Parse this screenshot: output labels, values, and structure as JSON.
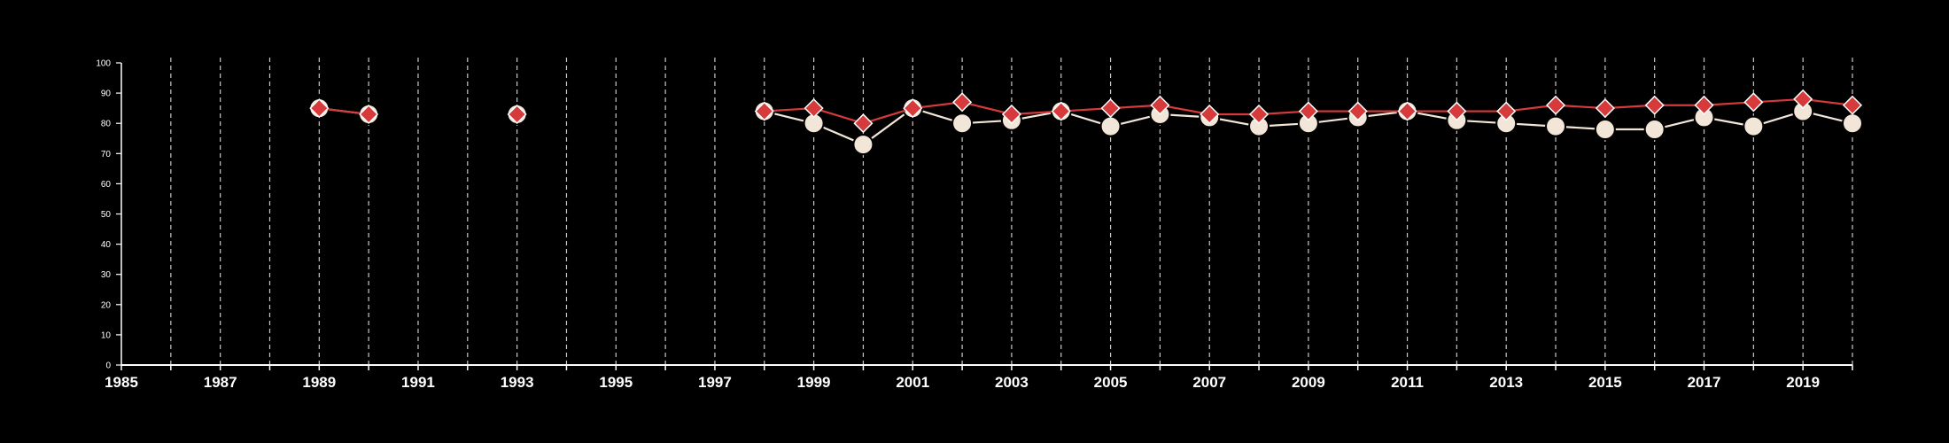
{
  "colors": {
    "background": "#000000",
    "axis": "#ffffff",
    "grid": "#c8c8c8",
    "series_a_line": "#f2e6d9",
    "series_a_marker": "#f2e6d9",
    "series_a_marker_stroke": "#000000",
    "series_b_line": "#d63a3a",
    "series_b_marker": "#d63a3a",
    "series_b_marker_stroke": "#ffffff"
  },
  "chart_data": {
    "type": "line",
    "title": "",
    "xlabel": "",
    "ylabel": "",
    "xlim": [
      1985,
      2020
    ],
    "ylim": [
      0,
      100
    ],
    "y_ticks": [
      0,
      10,
      20,
      30,
      40,
      50,
      60,
      70,
      80,
      90,
      100
    ],
    "x_tick_labels": [
      1985,
      1987,
      1989,
      1991,
      1993,
      1995,
      1997,
      1999,
      2001,
      2003,
      2005,
      2007,
      2009,
      2011,
      2013,
      2015,
      2017,
      2019
    ],
    "grid": "vertical dashed at every year",
    "legend": "none",
    "series": [
      {
        "marker": "circle",
        "segments": [
          [
            [
              1989,
              85
            ],
            [
              1990,
              83
            ]
          ],
          [
            [
              1993,
              83
            ]
          ],
          [
            [
              1998,
              84
            ],
            [
              1999,
              80
            ],
            [
              2000,
              73
            ],
            [
              2001,
              85
            ],
            [
              2002,
              80
            ],
            [
              2003,
              81
            ],
            [
              2004,
              84
            ],
            [
              2005,
              79
            ],
            [
              2006,
              83
            ],
            [
              2007,
              82
            ],
            [
              2008,
              79
            ],
            [
              2009,
              80
            ],
            [
              2010,
              82
            ],
            [
              2011,
              84
            ],
            [
              2012,
              81
            ],
            [
              2013,
              80
            ],
            [
              2014,
              79
            ],
            [
              2015,
              78
            ],
            [
              2016,
              78
            ],
            [
              2017,
              82
            ],
            [
              2018,
              79
            ],
            [
              2019,
              84
            ],
            [
              2020,
              80
            ]
          ]
        ]
      },
      {
        "marker": "diamond",
        "segments": [
          [
            [
              1989,
              85
            ],
            [
              1990,
              83
            ]
          ],
          [
            [
              1993,
              83
            ]
          ],
          [
            [
              1998,
              84
            ],
            [
              1999,
              85
            ],
            [
              2000,
              80
            ],
            [
              2001,
              85
            ],
            [
              2002,
              87
            ],
            [
              2003,
              83
            ],
            [
              2004,
              84
            ],
            [
              2005,
              85
            ],
            [
              2006,
              86
            ],
            [
              2007,
              83
            ],
            [
              2008,
              83
            ],
            [
              2009,
              84
            ],
            [
              2010,
              84
            ],
            [
              2011,
              84
            ],
            [
              2012,
              84
            ],
            [
              2013,
              84
            ],
            [
              2014,
              86
            ],
            [
              2015,
              85
            ],
            [
              2016,
              86
            ],
            [
              2017,
              86
            ],
            [
              2018,
              87
            ],
            [
              2019,
              88
            ],
            [
              2020,
              86
            ]
          ]
        ]
      }
    ]
  }
}
